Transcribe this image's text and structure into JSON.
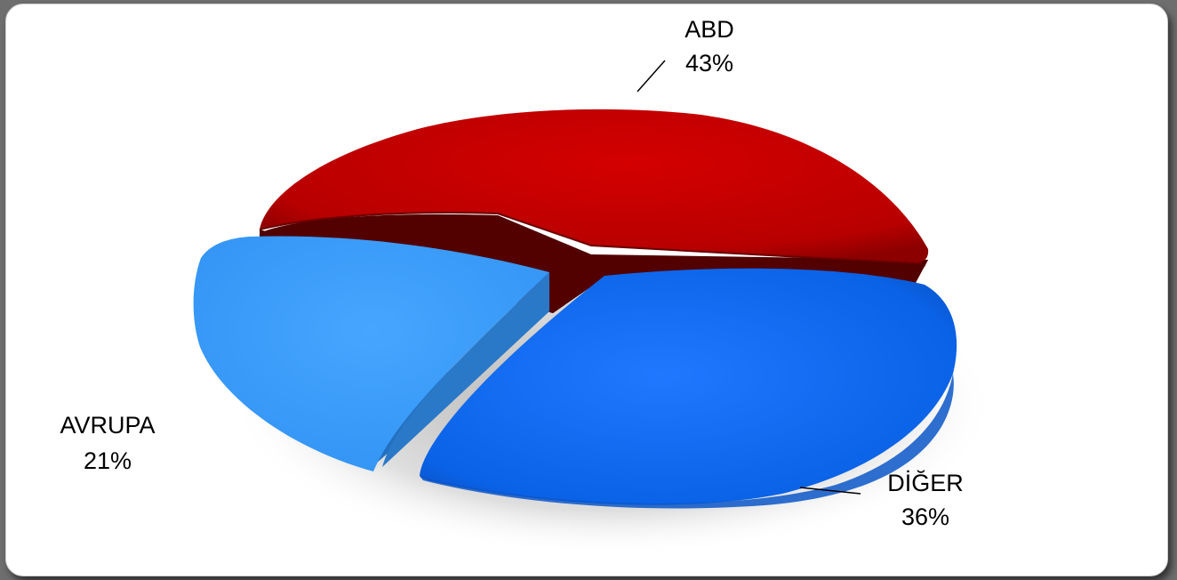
{
  "chart_data": {
    "type": "pie",
    "style": "3d-exploded",
    "categories": [
      "ABD",
      "DİĞER",
      "AVRUPA"
    ],
    "values": [
      43,
      36,
      21
    ],
    "unit": "%",
    "labels": [
      {
        "name": "ABD",
        "value": "43%"
      },
      {
        "name": "DİĞER",
        "value": "36%"
      },
      {
        "name": "AVRUPA",
        "value": "21%"
      }
    ],
    "colors": {
      "ABD": "#c00000",
      "DİĞER": "#1a6ef0",
      "AVRUPA": "#3a9af5"
    },
    "title": "",
    "legend": "none"
  }
}
